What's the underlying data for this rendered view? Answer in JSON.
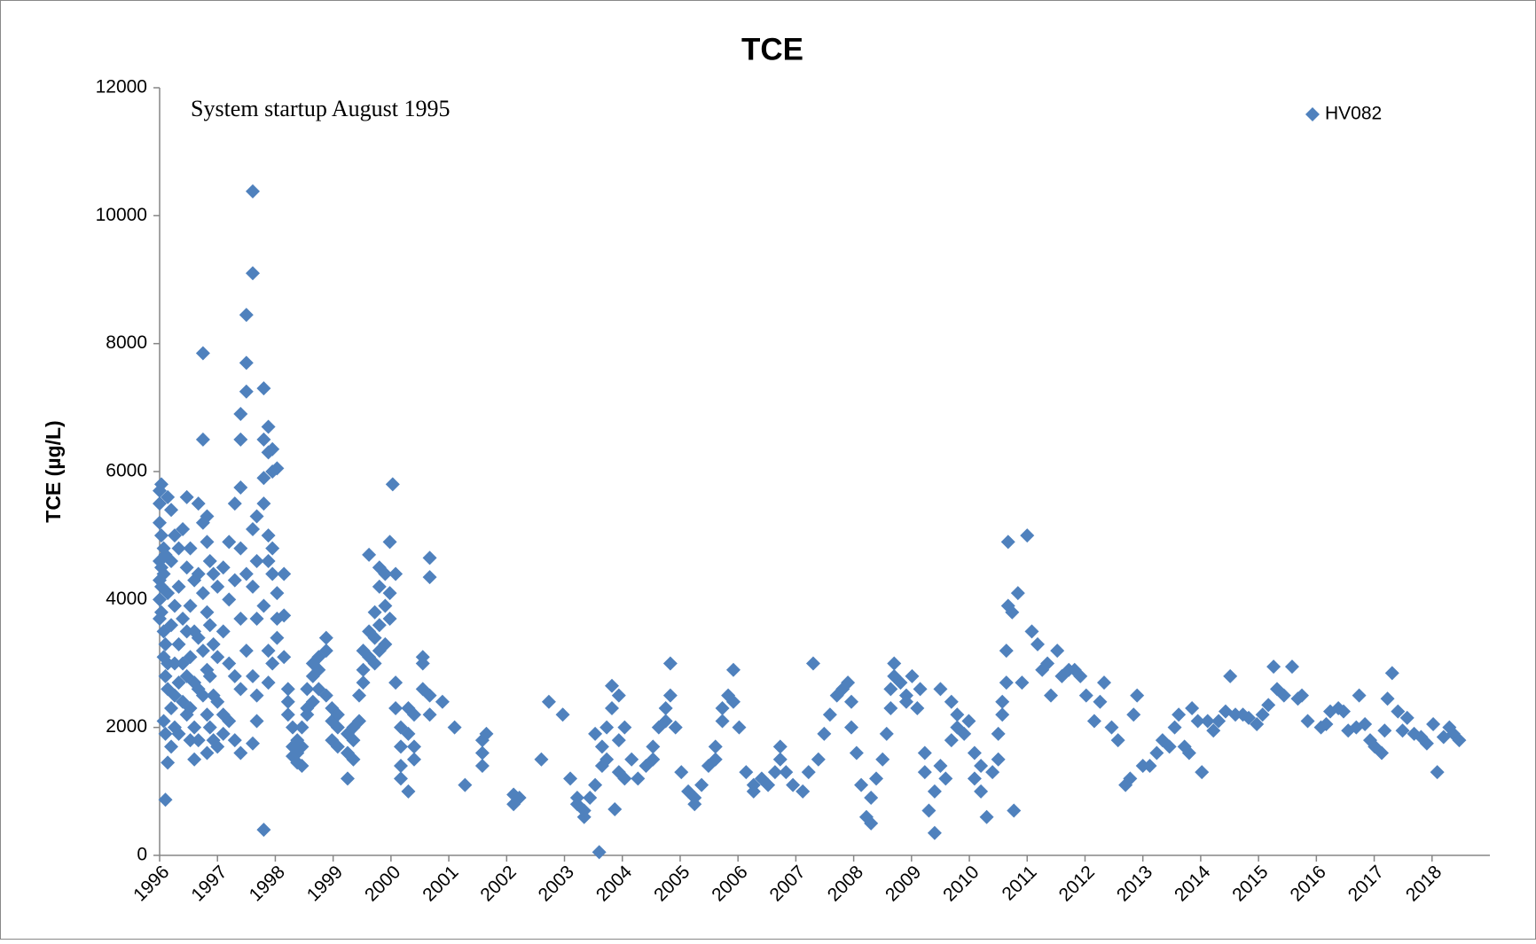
{
  "chart_data": {
    "type": "scatter",
    "title": "TCE",
    "y_label": "TCE (µg/L)",
    "annotation": "System startup August 1995",
    "legend": "upper right",
    "grid": false,
    "xlim": [
      1996,
      2019
    ],
    "xticks": [
      1996,
      1997,
      1998,
      1999,
      2000,
      2001,
      2002,
      2003,
      2004,
      2005,
      2006,
      2007,
      2008,
      2009,
      2010,
      2011,
      2012,
      2013,
      2014,
      2015,
      2016,
      2017,
      2018
    ],
    "ylim": [
      0,
      12000
    ],
    "yticks": [
      0,
      2000,
      4000,
      6000,
      8000,
      10000,
      12000
    ],
    "x": [
      1996,
      1996,
      1996,
      1996,
      1996,
      1996,
      1996,
      1996.03,
      1996.03,
      1996.03,
      1996.03,
      1996.03,
      1996.07,
      1996.07,
      1996.07,
      1996.07,
      1996.07,
      1996.1,
      1996.1,
      1996.1,
      1996.1,
      1996.1,
      1996.14,
      1996.14,
      1996.14,
      1996.14,
      1996.14,
      1996.2,
      1996.2,
      1996.2,
      1996.2,
      1996.2,
      1996.26,
      1996.26,
      1996.26,
      1996.26,
      1996.26,
      1996.33,
      1996.33,
      1996.33,
      1996.33,
      1996.33,
      1996.4,
      1996.4,
      1996.4,
      1996.4,
      1996.47,
      1996.47,
      1996.47,
      1996.47,
      1996.47,
      1996.53,
      1996.53,
      1996.53,
      1996.53,
      1996.53,
      1996.6,
      1996.6,
      1996.6,
      1996.6,
      1996.6,
      1996.67,
      1996.67,
      1996.67,
      1996.67,
      1996.67,
      1996.75,
      1996.75,
      1996.75,
      1996.75,
      1996.75,
      1996.75,
      1996.82,
      1996.82,
      1996.82,
      1996.82,
      1996.82,
      1996.82,
      1996.87,
      1996.87,
      1996.87,
      1996.87,
      1996.93,
      1996.93,
      1996.93,
      1996.93,
      1997,
      1997,
      1997,
      1997,
      1997.1,
      1997.1,
      1997.1,
      1997.1,
      1997.2,
      1997.2,
      1997.2,
      1997.2,
      1997.3,
      1997.3,
      1997.3,
      1997.3,
      1997.4,
      1997.4,
      1997.4,
      1997.4,
      1997.4,
      1997.4,
      1997.4,
      1997.5,
      1997.5,
      1997.5,
      1997.5,
      1997.5,
      1997.61,
      1997.61,
      1997.61,
      1997.61,
      1997.61,
      1997.61,
      1997.68,
      1997.68,
      1997.68,
      1997.68,
      1997.68,
      1997.8,
      1997.8,
      1997.8,
      1997.8,
      1997.8,
      1997.8,
      1997.88,
      1997.88,
      1997.88,
      1997.88,
      1997.88,
      1997.88,
      1997.95,
      1997.95,
      1997.95,
      1997.95,
      1997.95,
      1998.03,
      1998.03,
      1998.03,
      1998.03,
      1998.15,
      1998.15,
      1998.15,
      1998.22,
      1998.22,
      1998.22,
      1998.3,
      1998.3,
      1998.3,
      1998.38,
      1998.38,
      1998.38,
      1998.46,
      1998.46,
      1998.46,
      1998.55,
      1998.55,
      1998.55,
      1998.65,
      1998.65,
      1998.65,
      1998.75,
      1998.75,
      1998.75,
      1998.88,
      1998.88,
      1998.88,
      1998.98,
      1998.98,
      1998.98,
      1999.08,
      1999.08,
      1999.08,
      1999.25,
      1999.25,
      1999.25,
      1999.35,
      1999.35,
      1999.35,
      1999.45,
      1999.45,
      1999.52,
      1999.52,
      1999.52,
      1999.62,
      1999.62,
      1999.62,
      1999.72,
      1999.72,
      1999.72,
      1999.8,
      1999.8,
      1999.8,
      1999.8,
      1999.9,
      1999.9,
      1999.9,
      1999.98,
      1999.98,
      1999.98,
      2000.03,
      2000.08,
      2000.08,
      2000.08,
      2000.17,
      2000.17,
      2000.17,
      2000.17,
      2000.3,
      2000.3,
      2000.3,
      2000.4,
      2000.4,
      2000.4,
      2000.55,
      2000.55,
      2000.55,
      2000.67,
      2000.67,
      2000.67,
      2000.67,
      2000.89,
      2001.1,
      2001.28,
      2001.58,
      2001.58,
      2001.58,
      2001.65,
      2002.12,
      2002.12,
      2002.22,
      2002.6,
      2002.73,
      2002.97,
      2003.1,
      2003.22,
      2003.22,
      2003.34,
      2003.34,
      2003.44,
      2003.53,
      2003.53,
      2003.6,
      2003.65,
      2003.65,
      2003.73,
      2003.73,
      2003.82,
      2003.82,
      2003.87,
      2003.94,
      2003.94,
      2003.94,
      2004.04,
      2004.04,
      2004.16,
      2004.27,
      2004.41,
      2004.53,
      2004.53,
      2004.63,
      2004.75,
      2004.75,
      2004.83,
      2004.83,
      2004.92,
      2005.02,
      2005.14,
      2005.25,
      2005.25,
      2005.37,
      2005.49,
      2005.61,
      2005.61,
      2005.73,
      2005.73,
      2005.83,
      2005.92,
      2005.92,
      2006.02,
      2006.14,
      2006.27,
      2006.27,
      2006.41,
      2006.52,
      2006.64,
      2006.73,
      2006.73,
      2006.83,
      2006.95,
      2007.12,
      2007.22,
      2007.3,
      2007.39,
      2007.49,
      2007.59,
      2007.71,
      2007.81,
      2007.9,
      2007.96,
      2007.96,
      2008.05,
      2008.13,
      2008.22,
      2008.3,
      2008.3,
      2008.39,
      2008.5,
      2008.57,
      2008.64,
      2008.64,
      2008.7,
      2008.7,
      2008.81,
      2008.91,
      2008.91,
      2009.01,
      2009.1,
      2009.15,
      2009.23,
      2009.23,
      2009.3,
      2009.4,
      2009.4,
      2009.5,
      2009.5,
      2009.59,
      2009.69,
      2009.69,
      2009.79,
      2009.79,
      2009.91,
      2009.99,
      2010.09,
      2010.09,
      2010.2,
      2010.2,
      2010.3,
      2010.4,
      2010.5,
      2010.5,
      2010.57,
      2010.57,
      2010.64,
      2010.64,
      2010.67,
      2010.67,
      2010.74,
      2010.77,
      2010.84,
      2010.91,
      2011,
      2011.08,
      2011.18,
      2011.26,
      2011.35,
      2011.41,
      2011.52,
      2011.6,
      2011.72,
      2011.82,
      2011.92,
      2012.02,
      2012.16,
      2012.26,
      2012.33,
      2012.46,
      2012.57,
      2012.7,
      2012.78,
      2012.84,
      2012.9,
      2013,
      2013.12,
      2013.24,
      2013.34,
      2013.46,
      2013.55,
      2013.62,
      2013.72,
      2013.8,
      2013.85,
      2013.95,
      2014.02,
      2014.12,
      2014.22,
      2014.31,
      2014.43,
      2014.51,
      2014.6,
      2014.73,
      2014.83,
      2014.97,
      2015.07,
      2015.17,
      2015.26,
      2015.32,
      2015.44,
      2015.58,
      2015.68,
      2015.75,
      2015.85,
      2016.08,
      2016.17,
      2016.24,
      2016.38,
      2016.47,
      2016.55,
      2016.69,
      2016.74,
      2016.84,
      2016.93,
      2017.01,
      2017.13,
      2017.18,
      2017.23,
      2017.31,
      2017.41,
      2017.49,
      2017.57,
      2017.69,
      2017.81,
      2017.91,
      2018.02,
      2018.09,
      2018.2,
      2018.3,
      2018.37,
      2018.47
    ],
    "series": [
      {
        "name": "HV082",
        "color": "#4f81bd",
        "values": [
          5700,
          5500,
          5200,
          4600,
          4300,
          4000,
          3700,
          5800,
          5000,
          4500,
          4200,
          3800,
          2100,
          4800,
          4400,
          3500,
          3100,
          870,
          1900,
          4700,
          3300,
          2800,
          1450,
          5600,
          4100,
          3000,
          2600,
          5400,
          4600,
          3600,
          2300,
          1700,
          5000,
          3900,
          3000,
          2500,
          2000,
          4800,
          4200,
          3300,
          2700,
          1900,
          5100,
          3700,
          3000,
          2400,
          5600,
          4500,
          3500,
          2800,
          2200,
          4800,
          3900,
          3100,
          2300,
          1800,
          4300,
          3500,
          2700,
          2000,
          1500,
          5500,
          4400,
          3400,
          2600,
          1800,
          7850,
          6500,
          5200,
          4100,
          3200,
          2500,
          5300,
          4900,
          3800,
          2900,
          2200,
          1600,
          4600,
          3600,
          2800,
          2000,
          4400,
          3300,
          2500,
          1800,
          4200,
          3100,
          2400,
          1700,
          4500,
          3500,
          2200,
          1900,
          4900,
          4000,
          3000,
          2100,
          5500,
          4300,
          2800,
          1800,
          5750,
          6900,
          6500,
          4800,
          3700,
          2600,
          1600,
          8450,
          7700,
          7250,
          4400,
          3200,
          10380,
          9100,
          5100,
          4200,
          2800,
          1750,
          5300,
          4600,
          3700,
          2500,
          2100,
          7300,
          6500,
          5900,
          5500,
          3900,
          400,
          6700,
          6300,
          5000,
          4600,
          3200,
          2700,
          6350,
          6000,
          4800,
          4400,
          3000,
          6050,
          4100,
          3700,
          3400,
          4400,
          3750,
          3100,
          2600,
          2400,
          2200,
          2000,
          1700,
          1550,
          1450,
          1600,
          1800,
          1400,
          1700,
          2000,
          2300,
          2600,
          2200,
          3000,
          2800,
          2400,
          3100,
          2900,
          2600,
          3400,
          3200,
          2500,
          2100,
          2300,
          1800,
          1700,
          2000,
          2200,
          1200,
          1600,
          1900,
          1800,
          2000,
          1500,
          2100,
          2500,
          2900,
          3200,
          2700,
          4700,
          3500,
          3100,
          3800,
          3400,
          3000,
          4500,
          4200,
          3600,
          3200,
          4400,
          3900,
          3300,
          4900,
          4100,
          3700,
          5800,
          4400,
          2700,
          2300,
          2000,
          1700,
          1400,
          1200,
          1000,
          1900,
          2300,
          2200,
          1700,
          1500,
          2600,
          3100,
          3000,
          4650,
          4350,
          2200,
          2500,
          2400,
          2000,
          1100,
          1800,
          1600,
          1400,
          1900,
          950,
          800,
          900,
          1500,
          2400,
          2200,
          1200,
          900,
          800,
          700,
          600,
          900,
          1100,
          1900,
          50,
          1700,
          1400,
          2000,
          1500,
          2650,
          2300,
          720,
          2500,
          1800,
          1300,
          2000,
          1200,
          1500,
          1200,
          1400,
          1700,
          1500,
          2000,
          2300,
          2100,
          3000,
          2500,
          2000,
          1300,
          1000,
          800,
          900,
          1100,
          1400,
          1700,
          1500,
          2100,
          2300,
          2500,
          2900,
          2400,
          2000,
          1300,
          1000,
          1100,
          1200,
          1100,
          1300,
          1700,
          1500,
          1300,
          1100,
          1000,
          1300,
          3000,
          1500,
          1900,
          2200,
          2500,
          2600,
          2700,
          2400,
          2000,
          1600,
          1100,
          600,
          500,
          900,
          1200,
          1500,
          1900,
          2300,
          2600,
          3000,
          2800,
          2700,
          2500,
          2400,
          2800,
          2300,
          2600,
          1600,
          1300,
          700,
          350,
          1000,
          2600,
          1400,
          1200,
          2400,
          1800,
          2200,
          2000,
          1900,
          2100,
          1600,
          1200,
          1000,
          1400,
          600,
          1300,
          1500,
          1900,
          2200,
          2400,
          2700,
          3200,
          4900,
          3900,
          3800,
          700,
          4100,
          2700,
          5000,
          3500,
          3300,
          2900,
          3000,
          2500,
          3200,
          2800,
          2900,
          2900,
          2800,
          2500,
          2100,
          2400,
          2700,
          2000,
          1800,
          1100,
          1200,
          2200,
          2500,
          1400,
          1400,
          1600,
          1800,
          1700,
          2000,
          2200,
          1700,
          1600,
          2300,
          2100,
          1300,
          2100,
          1950,
          2100,
          2250,
          2800,
          2200,
          2200,
          2150,
          2050,
          2200,
          2350,
          2950,
          2600,
          2500,
          2950,
          2450,
          2500,
          2100,
          2000,
          2050,
          2250,
          2300,
          2250,
          1950,
          2000,
          2500,
          2050,
          1800,
          1700,
          1600,
          1950,
          2450,
          2850,
          2250,
          1950,
          2150,
          1900,
          1850,
          1750,
          2050,
          1300,
          1850,
          2000,
          1900,
          1800
        ]
      }
    ]
  }
}
